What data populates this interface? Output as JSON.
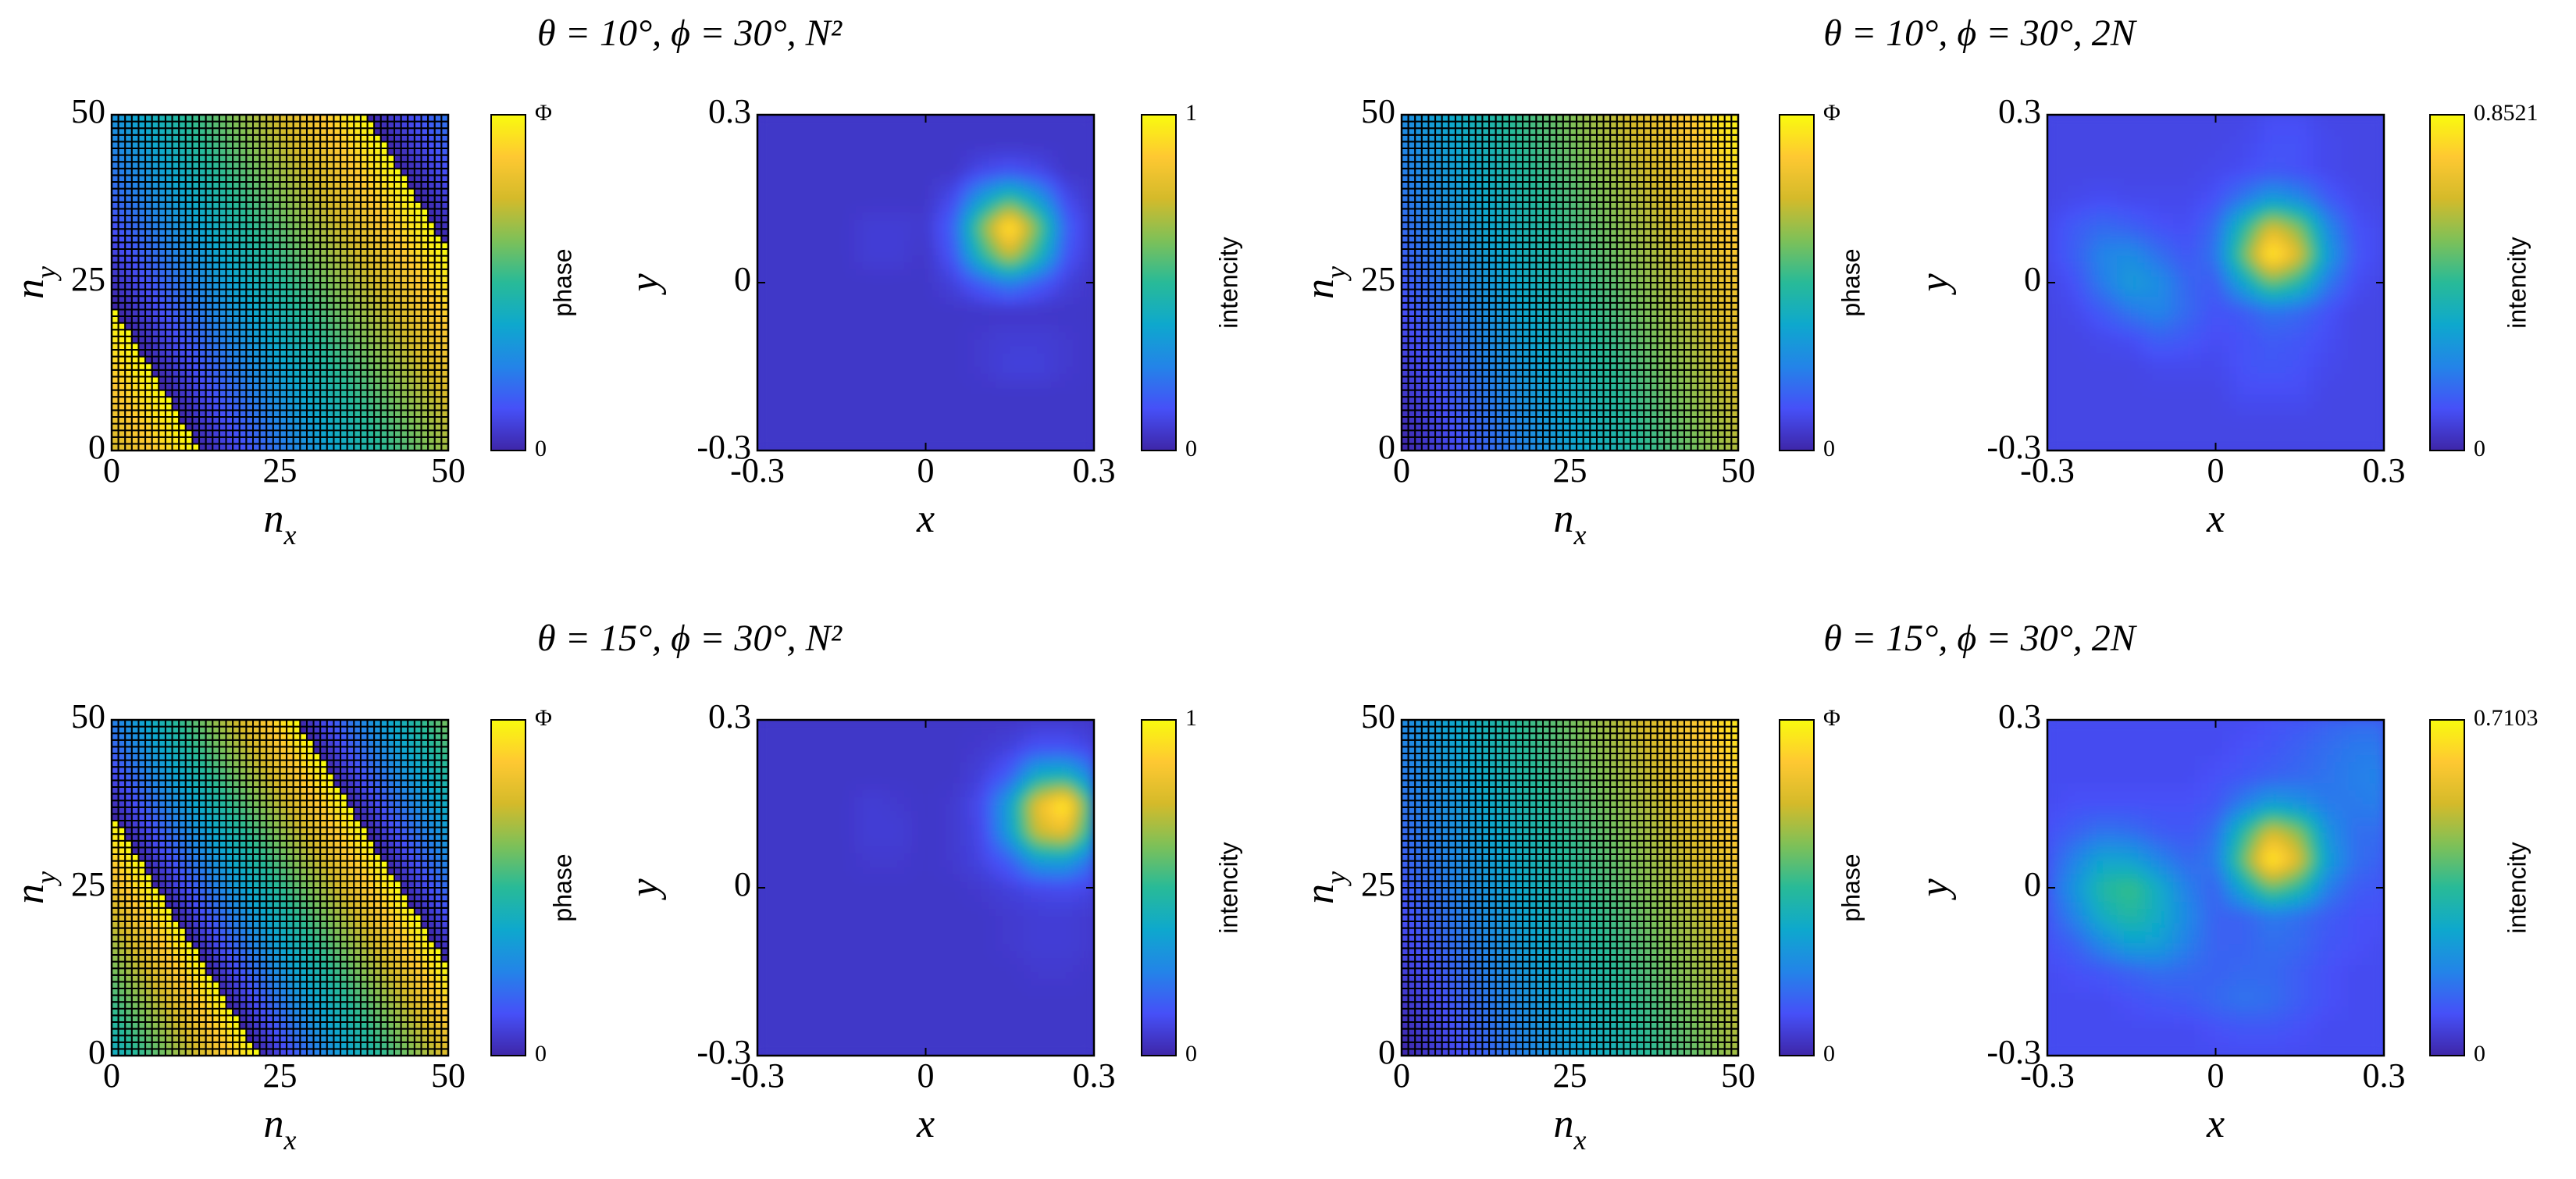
{
  "chart_data": [
    {
      "type": "phase-grid",
      "title": "θ = 10°, ϕ = 30°, N²",
      "xlabel": {
        "text": "n",
        "sub": "x"
      },
      "ylabel": {
        "text": "n",
        "sub": "y"
      },
      "xlim": [
        0,
        50
      ],
      "ylim": [
        0,
        50
      ],
      "xticks": [
        0,
        25,
        50
      ],
      "yticks": [
        0,
        25,
        50
      ],
      "sample_x": [
        0,
        25,
        50
      ],
      "sample_y": [
        0,
        25,
        50
      ],
      "z": [
        [
          0.762,
          1.22,
          1.678
        ],
        [
          1.033,
          1.49,
          1.949
        ],
        [
          1.303,
          1.762,
          2.22
        ]
      ],
      "clim": [
        0,
        1
      ],
      "colorbar_ticks": [
        0,
        {
          "value": 1,
          "label": "Φ"
        }
      ],
      "colorbar_label": "phase"
    },
    {
      "type": "intensity-map",
      "xlabel": "x",
      "ylabel": "y",
      "xlim": [
        -0.3,
        0.3
      ],
      "ylim": [
        -0.3,
        0.3
      ],
      "xticks": [
        -0.3,
        0,
        0.3
      ],
      "yticks": [
        -0.3,
        0,
        0.3
      ],
      "sample_x": [
        -0.3,
        -0.25,
        -0.2,
        -0.15,
        -0.1,
        -0.05,
        0,
        0.05,
        0.1,
        0.15,
        0.2,
        0.25,
        0.3
      ],
      "sample_y": [
        -0.3,
        -0.25,
        -0.2,
        -0.15,
        -0.1,
        -0.05,
        0,
        0.05,
        0.1,
        0.15,
        0.2,
        0.25,
        0.3
      ],
      "z": [
        [
          0.05,
          0.05,
          0.05,
          0.05,
          0.05,
          0.05,
          0.05,
          0.05,
          0.05,
          0.05,
          0.05,
          0.05,
          0.05
        ],
        [
          0.05,
          0.05,
          0.05,
          0.05,
          0.05,
          0.05,
          0.05,
          0.05,
          0.05,
          0.05,
          0.05,
          0.05,
          0.05
        ],
        [
          0.05,
          0.05,
          0.05,
          0.05,
          0.05,
          0.05,
          0.05,
          0.05,
          0.05,
          0.05,
          0.05,
          0.05,
          0.05
        ],
        [
          0.05,
          0.05,
          0.05,
          0.05,
          0.05,
          0.05,
          0.05,
          0.05,
          0.06,
          0.08,
          0.08,
          0.06,
          0.05
        ],
        [
          0.05,
          0.05,
          0.05,
          0.05,
          0.05,
          0.05,
          0.05,
          0.05,
          0.06,
          0.07,
          0.07,
          0.06,
          0.05
        ],
        [
          0.05,
          0.05,
          0.05,
          0.05,
          0.05,
          0.05,
          0.05,
          0.05,
          0.05,
          0.05,
          0.05,
          0.05,
          0.05
        ],
        [
          0.05,
          0.05,
          0.05,
          0.05,
          0.05,
          0.05,
          0.05,
          0.08,
          0.16,
          0.24,
          0.16,
          0.08,
          0.05
        ],
        [
          0.05,
          0.05,
          0.05,
          0.05,
          0.07,
          0.07,
          0.05,
          0.14,
          0.47,
          0.74,
          0.47,
          0.14,
          0.06
        ],
        [
          0.05,
          0.05,
          0.05,
          0.05,
          0.07,
          0.07,
          0.06,
          0.17,
          0.61,
          1,
          0.61,
          0.17,
          0.06
        ],
        [
          0.05,
          0.05,
          0.05,
          0.05,
          0.05,
          0.05,
          0.05,
          0.11,
          0.34,
          0.52,
          0.34,
          0.11,
          0.05
        ],
        [
          0.05,
          0.05,
          0.05,
          0.05,
          0.05,
          0.05,
          0.05,
          0.05,
          0.1,
          0.13,
          0.1,
          0.05,
          0.05
        ],
        [
          0.05,
          0.05,
          0.05,
          0.05,
          0.05,
          0.05,
          0.05,
          0.05,
          0.05,
          0.05,
          0.05,
          0.05,
          0.05
        ],
        [
          0.05,
          0.05,
          0.05,
          0.05,
          0.05,
          0.05,
          0.05,
          0.05,
          0.05,
          0.05,
          0.05,
          0.05,
          0.05
        ]
      ],
      "clim": [
        0,
        1
      ],
      "colorbar_ticks": [
        0,
        1
      ],
      "colorbar_label": "intencity"
    },
    {
      "type": "phase-grid",
      "title": "θ = 10°, ϕ = 30°, 2N",
      "xlabel": {
        "text": "n",
        "sub": "x"
      },
      "ylabel": {
        "text": "n",
        "sub": "y"
      },
      "xlim": [
        0,
        50
      ],
      "ylim": [
        0,
        50
      ],
      "xticks": [
        0,
        25,
        50
      ],
      "yticks": [
        0,
        25,
        50
      ],
      "sample_x": [
        0,
        25,
        50
      ],
      "sample_y": [
        0,
        25,
        50
      ],
      "z": [
        [
          0,
          0.35,
          0.7
        ],
        [
          0.14,
          0.49,
          0.84
        ],
        [
          0.28,
          0.63,
          0.98
        ]
      ],
      "clim": [
        0,
        1
      ],
      "colorbar_ticks": [
        0,
        {
          "value": 1,
          "label": "Φ"
        }
      ],
      "colorbar_label": "phase"
    },
    {
      "type": "intensity-map",
      "xlabel": "x",
      "ylabel": "y",
      "xlim": [
        -0.3,
        0.3
      ],
      "ylim": [
        -0.3,
        0.3
      ],
      "xticks": [
        -0.3,
        0,
        0.3
      ],
      "yticks": [
        -0.3,
        0,
        0.3
      ],
      "sample_x": [
        -0.3,
        -0.25,
        -0.2,
        -0.15,
        -0.1,
        -0.05,
        0,
        0.05,
        0.1,
        0.15,
        0.2,
        0.25,
        0.3
      ],
      "sample_y": [
        -0.3,
        -0.25,
        -0.2,
        -0.15,
        -0.1,
        -0.05,
        0,
        0.05,
        0.1,
        0.15,
        0.2,
        0.25,
        0.3
      ],
      "z": [
        [
          0.08,
          0.08,
          0.08,
          0.08,
          0.08,
          0.08,
          0.08,
          0.08,
          0.08,
          0.08,
          0.08,
          0.08,
          0.08
        ],
        [
          0.08,
          0.08,
          0.08,
          0.08,
          0.08,
          0.08,
          0.08,
          0.08,
          0.08,
          0.08,
          0.08,
          0.08,
          0.08
        ],
        [
          0.08,
          0.08,
          0.08,
          0.08,
          0.08,
          0.08,
          0.08,
          0.1,
          0.1,
          0.1,
          0.08,
          0.08,
          0.08
        ],
        [
          0.08,
          0.08,
          0.08,
          0.08,
          0.09,
          0.09,
          0.09,
          0.11,
          0.12,
          0.11,
          0.09,
          0.08,
          0.08
        ],
        [
          0.08,
          0.08,
          0.09,
          0.1,
          0.14,
          0.12,
          0.1,
          0.11,
          0.13,
          0.12,
          0.1,
          0.08,
          0.08
        ],
        [
          0.08,
          0.09,
          0.13,
          0.19,
          0.22,
          0.16,
          0.11,
          0.13,
          0.18,
          0.16,
          0.11,
          0.08,
          0.08
        ],
        [
          0.08,
          0.11,
          0.2,
          0.28,
          0.24,
          0.15,
          0.13,
          0.31,
          0.5,
          0.4,
          0.19,
          0.1,
          0.08
        ],
        [
          0.09,
          0.14,
          0.22,
          0.24,
          0.17,
          0.12,
          0.18,
          0.5,
          0.85,
          0.66,
          0.28,
          0.12,
          0.09
        ],
        [
          0.09,
          0.13,
          0.16,
          0.14,
          0.11,
          0.1,
          0.16,
          0.4,
          0.66,
          0.53,
          0.23,
          0.11,
          0.09
        ],
        [
          0.08,
          0.09,
          0.1,
          0.09,
          0.09,
          0.09,
          0.11,
          0.19,
          0.28,
          0.23,
          0.13,
          0.09,
          0.08
        ],
        [
          0.08,
          0.08,
          0.08,
          0.08,
          0.08,
          0.08,
          0.09,
          0.1,
          0.12,
          0.11,
          0.09,
          0.08,
          0.08
        ],
        [
          0.08,
          0.08,
          0.08,
          0.08,
          0.08,
          0.08,
          0.08,
          0.09,
          0.11,
          0.11,
          0.09,
          0.08,
          0.08
        ],
        [
          0.08,
          0.08,
          0.08,
          0.08,
          0.08,
          0.08,
          0.08,
          0.08,
          0.1,
          0.1,
          0.08,
          0.08,
          0.08
        ]
      ],
      "clim": [
        0,
        0.8521
      ],
      "colorbar_ticks": [
        0,
        0.8521
      ],
      "colorbar_label": "intencity"
    },
    {
      "type": "phase-grid",
      "title": "θ = 15°, ϕ = 30°, N²",
      "xlabel": {
        "text": "n",
        "sub": "x"
      },
      "ylabel": {
        "text": "n",
        "sub": "y"
      },
      "xlim": [
        0,
        50
      ],
      "ylim": [
        0,
        50
      ],
      "xticks": [
        0,
        25,
        50
      ],
      "yticks": [
        0,
        25,
        50
      ],
      "sample_x": [
        0,
        25,
        50
      ],
      "sample_y": [
        0,
        25,
        50
      ],
      "z": [
        [
          0.391,
          1.083,
          1.775
        ],
        [
          0.814,
          1.506,
          2.198
        ],
        [
          1.237,
          1.929,
          2.622
        ]
      ],
      "clim": [
        0,
        1
      ],
      "colorbar_ticks": [
        0,
        {
          "value": 1,
          "label": "Φ"
        }
      ],
      "colorbar_label": "phase"
    },
    {
      "type": "intensity-map",
      "xlabel": "x",
      "ylabel": "y",
      "xlim": [
        -0.3,
        0.3
      ],
      "ylim": [
        -0.3,
        0.3
      ],
      "xticks": [
        -0.3,
        0,
        0.3
      ],
      "yticks": [
        -0.3,
        0,
        0.3
      ],
      "sample_x": [
        -0.3,
        -0.25,
        -0.2,
        -0.15,
        -0.1,
        -0.05,
        0,
        0.05,
        0.1,
        0.15,
        0.2,
        0.25,
        0.3
      ],
      "sample_y": [
        -0.3,
        -0.25,
        -0.2,
        -0.15,
        -0.1,
        -0.05,
        0,
        0.05,
        0.1,
        0.15,
        0.2,
        0.25,
        0.3
      ],
      "z": [
        [
          0.05,
          0.05,
          0.05,
          0.05,
          0.05,
          0.05,
          0.05,
          0.05,
          0.05,
          0.05,
          0.05,
          0.05,
          0.05
        ],
        [
          0.05,
          0.05,
          0.05,
          0.05,
          0.05,
          0.05,
          0.05,
          0.05,
          0.05,
          0.05,
          0.05,
          0.05,
          0.05
        ],
        [
          0.05,
          0.05,
          0.05,
          0.05,
          0.05,
          0.05,
          0.05,
          0.05,
          0.05,
          0.05,
          0.05,
          0.05,
          0.05
        ],
        [
          0.05,
          0.05,
          0.05,
          0.05,
          0.05,
          0.05,
          0.05,
          0.05,
          0.05,
          0.05,
          0.06,
          0.06,
          0.05
        ],
        [
          0.05,
          0.05,
          0.05,
          0.05,
          0.05,
          0.05,
          0.05,
          0.05,
          0.05,
          0.06,
          0.07,
          0.07,
          0.06
        ],
        [
          0.05,
          0.05,
          0.05,
          0.05,
          0.05,
          0.05,
          0.05,
          0.05,
          0.05,
          0.06,
          0.07,
          0.07,
          0.06
        ],
        [
          0.05,
          0.05,
          0.05,
          0.05,
          0.05,
          0.05,
          0.05,
          0.05,
          0.06,
          0.08,
          0.1,
          0.11,
          0.09
        ],
        [
          0.05,
          0.05,
          0.05,
          0.05,
          0.06,
          0.06,
          0.05,
          0.06,
          0.09,
          0.16,
          0.34,
          0.35,
          0.19
        ],
        [
          0.05,
          0.05,
          0.05,
          0.05,
          0.07,
          0.07,
          0.05,
          0.06,
          0.1,
          0.34,
          0.75,
          0.82,
          0.41
        ],
        [
          0.05,
          0.05,
          0.05,
          0.05,
          0.07,
          0.06,
          0.05,
          0.06,
          0.11,
          0.35,
          0.82,
          1,
          0.44
        ],
        [
          0.05,
          0.05,
          0.05,
          0.05,
          0.05,
          0.05,
          0.05,
          0.05,
          0.08,
          0.16,
          0.41,
          0.44,
          0.24
        ],
        [
          0.05,
          0.05,
          0.05,
          0.05,
          0.05,
          0.05,
          0.05,
          0.05,
          0.06,
          0.08,
          0.13,
          0.13,
          0.09
        ],
        [
          0.05,
          0.05,
          0.05,
          0.05,
          0.05,
          0.05,
          0.05,
          0.05,
          0.05,
          0.05,
          0.06,
          0.06,
          0.05
        ]
      ],
      "clim": [
        0,
        1
      ],
      "colorbar_ticks": [
        0,
        1
      ],
      "colorbar_label": "intencity"
    },
    {
      "type": "phase-grid",
      "title": "θ = 15°, ϕ = 30°, 2N",
      "xlabel": {
        "text": "n",
        "sub": "x"
      },
      "ylabel": {
        "text": "n",
        "sub": "y"
      },
      "xlim": [
        0,
        50
      ],
      "ylim": [
        0,
        50
      ],
      "xticks": [
        0,
        25,
        50
      ],
      "yticks": [
        0,
        25,
        50
      ],
      "sample_x": [
        0,
        25,
        50
      ],
      "sample_y": [
        0,
        25,
        50
      ],
      "z": [
        [
          0,
          0.34,
          0.68
        ],
        [
          0.14,
          0.48,
          0.82
        ],
        [
          0.27,
          0.61,
          0.95
        ]
      ],
      "clim": [
        0,
        1
      ],
      "colorbar_ticks": [
        0,
        {
          "value": 1,
          "label": "Φ"
        }
      ],
      "colorbar_label": "phase"
    },
    {
      "type": "intensity-map",
      "xlabel": "x",
      "ylabel": "y",
      "xlim": [
        -0.3,
        0.3
      ],
      "ylim": [
        -0.3,
        0.3
      ],
      "xticks": [
        -0.3,
        0,
        0.3
      ],
      "yticks": [
        -0.3,
        0,
        0.3
      ],
      "sample_x": [
        -0.3,
        -0.25,
        -0.2,
        -0.15,
        -0.1,
        -0.05,
        0,
        0.05,
        0.1,
        0.15,
        0.2,
        0.25,
        0.3
      ],
      "sample_y": [
        -0.3,
        -0.25,
        -0.2,
        -0.15,
        -0.1,
        -0.05,
        0,
        0.05,
        0.1,
        0.15,
        0.2,
        0.25,
        0.3
      ],
      "z": [
        [
          0.08,
          0.08,
          0.08,
          0.08,
          0.08,
          0.08,
          0.08,
          0.08,
          0.08,
          0.08,
          0.08,
          0.08,
          0.08
        ],
        [
          0.08,
          0.08,
          0.08,
          0.08,
          0.08,
          0.08,
          0.09,
          0.1,
          0.1,
          0.09,
          0.08,
          0.08,
          0.08
        ],
        [
          0.08,
          0.08,
          0.08,
          0.09,
          0.1,
          0.11,
          0.13,
          0.15,
          0.14,
          0.11,
          0.09,
          0.08,
          0.08
        ],
        [
          0.08,
          0.09,
          0.1,
          0.12,
          0.14,
          0.13,
          0.12,
          0.13,
          0.13,
          0.11,
          0.09,
          0.08,
          0.08
        ],
        [
          0.09,
          0.12,
          0.19,
          0.25,
          0.24,
          0.17,
          0.12,
          0.12,
          0.14,
          0.13,
          0.1,
          0.09,
          0.08
        ],
        [
          0.1,
          0.18,
          0.29,
          0.34,
          0.28,
          0.19,
          0.12,
          0.12,
          0.16,
          0.14,
          0.11,
          0.09,
          0.09
        ],
        [
          0.11,
          0.22,
          0.34,
          0.38,
          0.28,
          0.17,
          0.12,
          0.27,
          0.42,
          0.34,
          0.17,
          0.11,
          0.1
        ],
        [
          0.1,
          0.18,
          0.26,
          0.25,
          0.18,
          0.13,
          0.16,
          0.42,
          0.71,
          0.55,
          0.24,
          0.14,
          0.12
        ],
        [
          0.09,
          0.12,
          0.15,
          0.14,
          0.11,
          0.1,
          0.14,
          0.34,
          0.55,
          0.45,
          0.21,
          0.14,
          0.14
        ],
        [
          0.08,
          0.09,
          0.09,
          0.09,
          0.09,
          0.09,
          0.1,
          0.17,
          0.24,
          0.21,
          0.16,
          0.16,
          0.17
        ],
        [
          0.08,
          0.08,
          0.08,
          0.08,
          0.08,
          0.08,
          0.09,
          0.1,
          0.12,
          0.13,
          0.15,
          0.17,
          0.18
        ],
        [
          0.08,
          0.08,
          0.08,
          0.08,
          0.08,
          0.08,
          0.08,
          0.09,
          0.1,
          0.12,
          0.14,
          0.16,
          0.16
        ],
        [
          0.08,
          0.08,
          0.08,
          0.08,
          0.08,
          0.08,
          0.08,
          0.08,
          0.09,
          0.1,
          0.12,
          0.13,
          0.13
        ]
      ],
      "clim": [
        0,
        0.7103
      ],
      "colorbar_ticks": [
        0,
        0.7103
      ],
      "colorbar_label": "intencity"
    }
  ]
}
